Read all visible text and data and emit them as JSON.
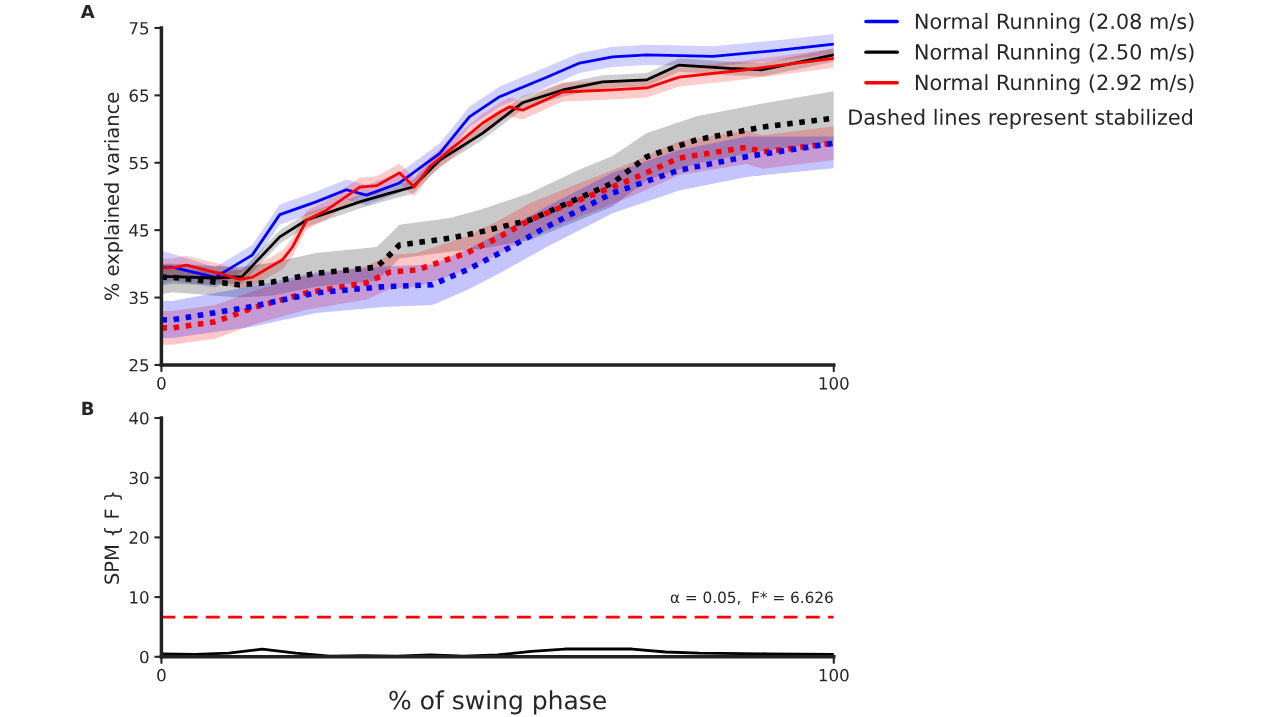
{
  "chart_data": [
    {
      "type": "line",
      "ylabel": "% explained variance",
      "xlim": [
        0,
        100
      ],
      "xticks": [
        0,
        100
      ],
      "ylim": [
        25,
        75
      ],
      "yticks": [
        25,
        35,
        45,
        55,
        65,
        75
      ],
      "grid": false,
      "legend": "right",
      "annotations": [
        "A",
        "Dashed lines represent stabilized"
      ],
      "series": [
        {
          "name": "Normal Running (2.08 m/s)",
          "color": "#0000ff",
          "line_style": "solid",
          "x": [
            0,
            1.6,
            8,
            13.5,
            17.6,
            23,
            27.5,
            30.5,
            35.4,
            41.4,
            45.8,
            50.3,
            57.3,
            62.2,
            67.1,
            72.2,
            82,
            92,
            100
          ],
          "values": [
            39.5,
            39.5,
            38,
            41.3,
            47.3,
            49.2,
            51,
            50.2,
            52,
            56.4,
            61.8,
            64.8,
            67.7,
            69.8,
            70.7,
            71,
            70.8,
            71.7,
            72.6
          ],
          "lower": [
            37,
            37.5,
            36.5,
            39.8,
            45.8,
            47.7,
            49.5,
            48.7,
            50.5,
            54.9,
            60.3,
            63.3,
            66.2,
            68.3,
            69.2,
            69.5,
            69.3,
            70.2,
            71.1
          ],
          "upper": [
            42,
            41.5,
            39.5,
            42.8,
            48.8,
            50.7,
            52.5,
            51.7,
            53.5,
            57.9,
            63.3,
            66.3,
            69.2,
            71.3,
            72.2,
            72.5,
            72.3,
            73.2,
            74.1
          ]
        },
        {
          "name": "Normal Running (2.50 m/s)",
          "color": "#000000",
          "line_style": "solid",
          "x": [
            0,
            1.6,
            8,
            12,
            17.6,
            21.6,
            29.5,
            34,
            37.4,
            41.4,
            47.8,
            53.7,
            59.7,
            65.6,
            72.2,
            77,
            84.5,
            89.4,
            100
          ],
          "values": [
            38.1,
            38.1,
            37.9,
            38.1,
            44,
            46.5,
            49.2,
            50.5,
            51.4,
            55.4,
            59.4,
            63.9,
            65.8,
            67,
            67.3,
            69.5,
            69,
            68.8,
            71
          ],
          "lower": [
            36.8,
            37,
            36.9,
            37.1,
            43,
            45.5,
            48.2,
            49.5,
            50.4,
            54.4,
            58.4,
            62.9,
            64.8,
            66,
            66.3,
            68.5,
            68,
            67.8,
            70
          ],
          "upper": [
            39.4,
            39.2,
            38.9,
            39.1,
            45,
            47.5,
            50.2,
            51.5,
            52.4,
            56.4,
            60.4,
            64.9,
            66.8,
            68,
            68.3,
            70.5,
            70,
            69.8,
            72
          ]
        },
        {
          "name": "Normal Running (2.92 m/s)",
          "color": "#ff0000",
          "line_style": "solid",
          "x": [
            0,
            1.6,
            3.7,
            8.6,
            11.6,
            13.5,
            18,
            19.5,
            21.6,
            24.6,
            29.5,
            32,
            35.4,
            37.6,
            39.9,
            47.8,
            50.3,
            51.8,
            53.7,
            59.7,
            67.1,
            72.2,
            77,
            87,
            100
          ],
          "values": [
            39.4,
            39.4,
            39.8,
            38.6,
            37.7,
            38,
            40.6,
            42.5,
            46.5,
            48,
            51.4,
            51.6,
            53.5,
            51.4,
            54.4,
            60.9,
            62.5,
            63.3,
            62.8,
            65.5,
            65.8,
            66.1,
            67.7,
            68.8,
            70.5
          ],
          "lower": [
            38,
            38,
            38.4,
            37.2,
            36.3,
            36.6,
            39.2,
            41.1,
            45.1,
            46.6,
            50,
            50.2,
            52.1,
            50,
            53,
            59.5,
            61.1,
            61.9,
            61.4,
            64.1,
            64.4,
            64.7,
            66.3,
            67.4,
            69.1
          ],
          "upper": [
            40.8,
            40.8,
            41.2,
            40,
            39.1,
            39.4,
            42,
            43.9,
            47.9,
            49.4,
            52.8,
            53,
            54.9,
            52.8,
            55.8,
            62.3,
            63.9,
            64.7,
            64.2,
            66.9,
            67.2,
            67.5,
            69.1,
            70.2,
            71.9
          ]
        },
        {
          "color": "#010101",
          "line_style": "dotted",
          "x": [
            0,
            1.6,
            11.6,
            16.5,
            23,
            32,
            33.5,
            35.4,
            42.9,
            47.3,
            54.8,
            62.2,
            67.1,
            72.2,
            79.6,
            89.4,
            100
          ],
          "values": [
            38,
            38,
            36.9,
            37.3,
            38.6,
            39.5,
            40.9,
            42.8,
            43.8,
            44.7,
            46.5,
            49.8,
            52,
            55.9,
            58.4,
            60.3,
            61.6
          ],
          "lower": [
            35.5,
            35.8,
            35,
            35.3,
            36.6,
            37.5,
            38.9,
            40.8,
            41.8,
            42.2,
            43.5,
            46.5,
            48.5,
            52.4,
            54.9,
            56.8,
            58.1
          ],
          "upper": [
            40,
            40,
            39.5,
            40.2,
            41.6,
            42.5,
            43.9,
            45.8,
            46.8,
            48,
            50.5,
            54,
            56,
            59.4,
            61.9,
            63.8,
            65.6
          ]
        },
        {
          "color": "#fe0000",
          "line_style": "dotted",
          "x": [
            0,
            1.6,
            8,
            14,
            21.6,
            30.5,
            34,
            38,
            45.4,
            50.3,
            54.8,
            62.2,
            69.6,
            77,
            87,
            89.4,
            100
          ],
          "values": [
            30.5,
            30.5,
            31.4,
            33.6,
            35.7,
            37.2,
            38.8,
            39.1,
            41.6,
            44,
            46.5,
            49.5,
            52.4,
            55.7,
            57.3,
            56.6,
            57.9
          ],
          "lower": [
            28,
            28,
            28.9,
            31.1,
            33.2,
            34.7,
            36.3,
            36.6,
            39.1,
            41.5,
            44,
            47,
            49.9,
            53.2,
            54.8,
            54.1,
            55.4
          ],
          "upper": [
            33,
            33,
            33.9,
            36.1,
            38.2,
            39.7,
            41.3,
            41.6,
            44.1,
            46.5,
            49,
            52,
            54.9,
            58.2,
            59.8,
            59.1,
            60.4
          ]
        },
        {
          "color": "#0000fe",
          "line_style": "dotted",
          "x": [
            0,
            1.6,
            13.1,
            23,
            32.9,
            40.3,
            45.4,
            50.3,
            57.3,
            67.1,
            77,
            87,
            100
          ],
          "values": [
            31.7,
            31.7,
            33.6,
            35.7,
            36.6,
            36.9,
            39.1,
            41.6,
            45.5,
            50.5,
            53.9,
            55.9,
            57.9
          ],
          "lower": [
            29,
            29,
            30.6,
            32.7,
            33.6,
            33.9,
            36.1,
            38.6,
            42.5,
            47.5,
            50.9,
            52.9,
            54.2
          ],
          "upper": [
            34.5,
            34.5,
            36.6,
            38.7,
            39.6,
            39.9,
            42.1,
            44.6,
            48.5,
            53.5,
            56.9,
            58.9,
            58.9
          ]
        }
      ]
    },
    {
      "type": "line",
      "xlabel": "% of swing phase",
      "ylabel": "SPM { F }",
      "xlim": [
        0,
        100
      ],
      "xticks": [
        0,
        100
      ],
      "ylim": [
        0,
        40
      ],
      "yticks": [
        0,
        10,
        20,
        30,
        40
      ],
      "grid": false,
      "annotations": [
        "B",
        {
          "text": "α = 0.05,  F* = 6.626",
          "x": 100,
          "y": 6.626
        }
      ],
      "ref_lines": [
        {
          "axis": "y",
          "value": 6.626,
          "color": "#ff0000",
          "line_style": "dashed"
        }
      ],
      "series": [
        {
          "color": "#000000",
          "line_style": "solid",
          "x": [
            0,
            5,
            10,
            15,
            20,
            25,
            30,
            35,
            40,
            45,
            50,
            55,
            60,
            65,
            70,
            75,
            80,
            90,
            100
          ],
          "values": [
            0.5,
            0.4,
            0.6,
            1.3,
            0.6,
            0.1,
            0.2,
            0.1,
            0.3,
            0.1,
            0.3,
            0.9,
            1.3,
            1.3,
            1.3,
            0.8,
            0.6,
            0.5,
            0.4
          ]
        }
      ]
    }
  ]
}
